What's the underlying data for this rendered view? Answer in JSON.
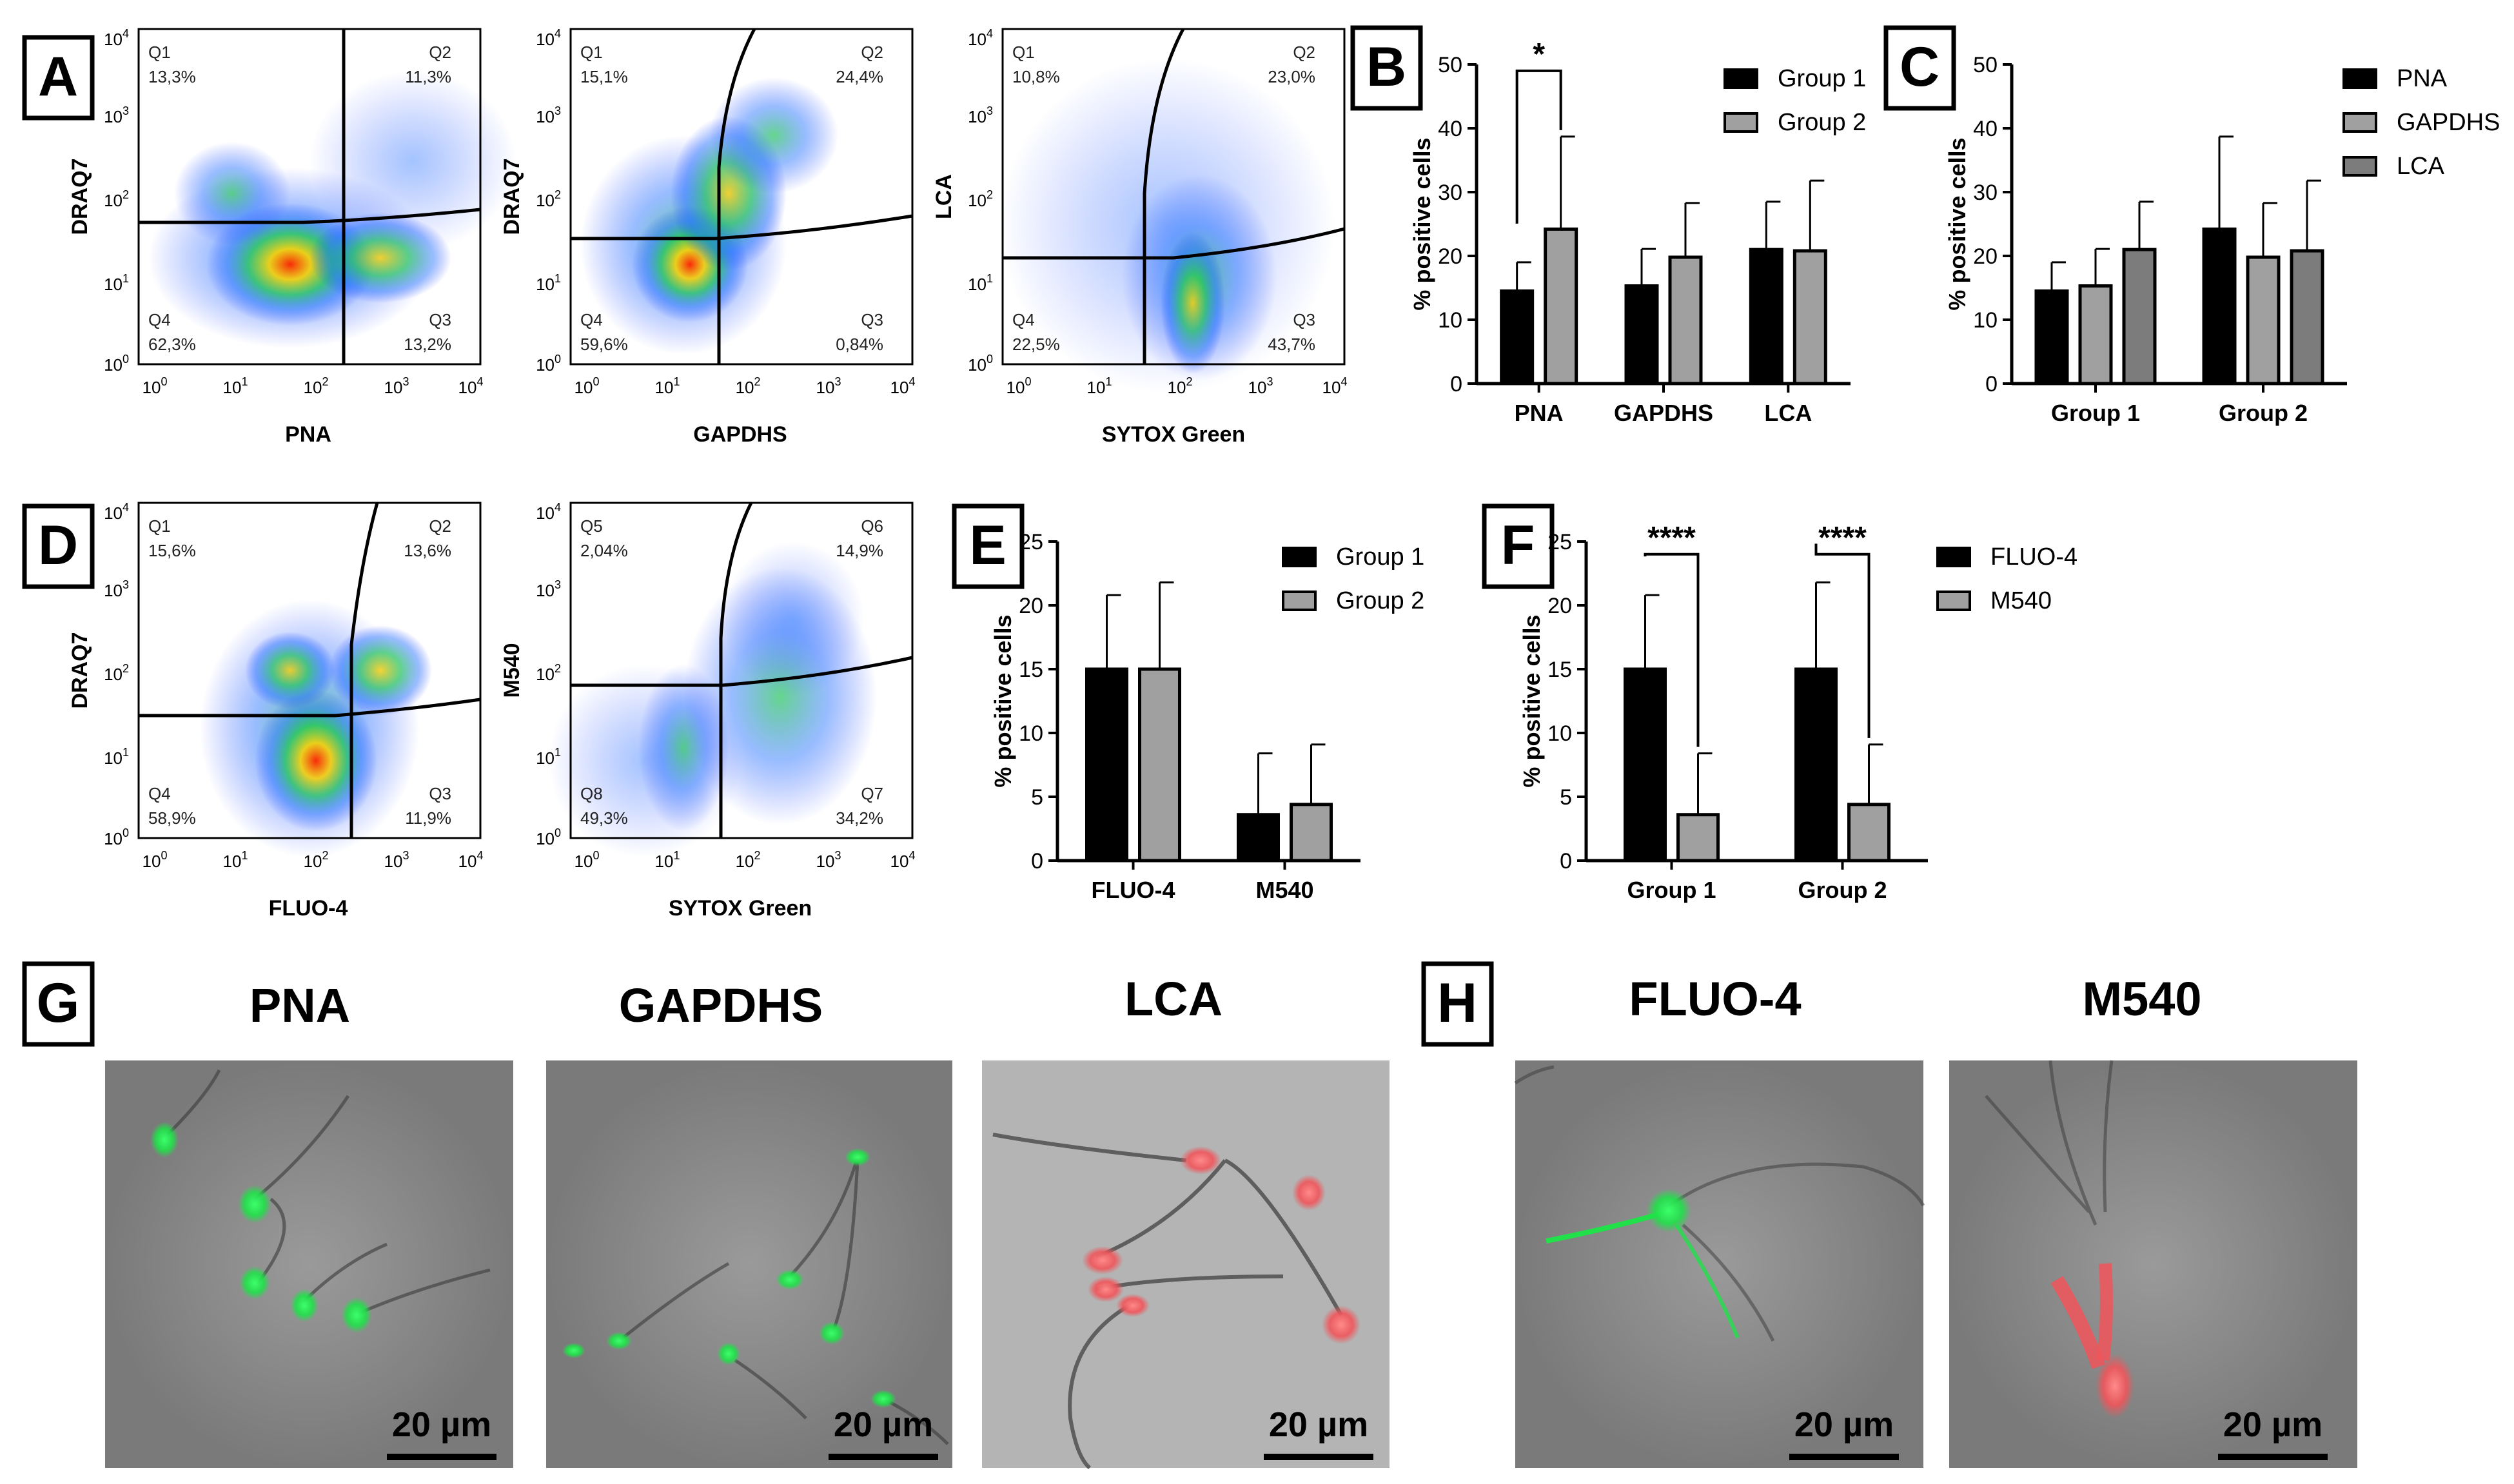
{
  "panel_letters": [
    "A",
    "B",
    "C",
    "D",
    "E",
    "F",
    "G",
    "H"
  ],
  "flow_plots": [
    {
      "xlabel": "PNA",
      "ylabel": "DRAQ7",
      "quadrants": [
        {
          "name": "Q1",
          "pct": "13,3%"
        },
        {
          "name": "Q2",
          "pct": "11,3%"
        },
        {
          "name": "Q4",
          "pct": "62,3%"
        },
        {
          "name": "Q3",
          "pct": "13,2%"
        }
      ]
    },
    {
      "xlabel": "GAPDHS",
      "ylabel": "DRAQ7",
      "quadrants": [
        {
          "name": "Q1",
          "pct": "15,1%"
        },
        {
          "name": "Q2",
          "pct": "24,4%"
        },
        {
          "name": "Q4",
          "pct": "59,6%"
        },
        {
          "name": "Q3",
          "pct": "0,84%"
        }
      ]
    },
    {
      "xlabel": "SYTOX Green",
      "ylabel": "LCA",
      "quadrants": [
        {
          "name": "Q1",
          "pct": "10,8%"
        },
        {
          "name": "Q2",
          "pct": "23,0%"
        },
        {
          "name": "Q4",
          "pct": "22,5%"
        },
        {
          "name": "Q3",
          "pct": "43,7%"
        }
      ]
    },
    {
      "xlabel": "FLUO-4",
      "ylabel": "DRAQ7",
      "quadrants": [
        {
          "name": "Q1",
          "pct": "15,6%"
        },
        {
          "name": "Q2",
          "pct": "13,6%"
        },
        {
          "name": "Q4",
          "pct": "58,9%"
        },
        {
          "name": "Q3",
          "pct": "11,9%"
        }
      ]
    },
    {
      "xlabel": "SYTOX Green",
      "ylabel": "M540",
      "quadrants": [
        {
          "name": "Q5",
          "pct": "2,04%"
        },
        {
          "name": "Q6",
          "pct": "14,9%"
        },
        {
          "name": "Q8",
          "pct": "49,3%"
        },
        {
          "name": "Q7",
          "pct": "34,2%"
        }
      ]
    }
  ],
  "micrographs": [
    {
      "title": "PNA",
      "scalebar": "20 µm",
      "stain": "green"
    },
    {
      "title": "GAPDHS",
      "scalebar": "20 µm",
      "stain": "green"
    },
    {
      "title": "LCA",
      "scalebar": "20 µm",
      "stain": "red"
    },
    {
      "title": "FLUO-4",
      "scalebar": "20 µm",
      "stain": "green"
    },
    {
      "title": "M540",
      "scalebar": "20 µm",
      "stain": "red"
    }
  ],
  "colors": {
    "black_bar": "#000000",
    "light_gray_bar": "#a0a0a0",
    "mid_gray_bar": "#7c7c7c",
    "axis": "#000000",
    "micrograph_bg": "#8c8c8c",
    "green_stain": "#21e04a",
    "red_stain": "#f0555a"
  },
  "chart_data": [
    {
      "panel": "B",
      "type": "bar",
      "ylabel": "% positive cells",
      "ylim": [
        0,
        50
      ],
      "yticks": [
        0,
        10,
        20,
        30,
        40,
        50
      ],
      "categories": [
        "PNA",
        "GAPDHS",
        "LCA"
      ],
      "series": [
        {
          "name": "Group 1",
          "values": [
            14.5,
            15.3,
            21.0
          ],
          "errors": [
            4.5,
            5.8,
            7.5
          ]
        },
        {
          "name": "Group 2",
          "values": [
            24.2,
            19.8,
            20.8
          ],
          "errors": [
            14.5,
            8.5,
            11.0
          ]
        }
      ],
      "annotations": [
        {
          "label": "*",
          "between": "PNA"
        }
      ],
      "legend": "top-right"
    },
    {
      "panel": "C",
      "type": "bar",
      "ylabel": "% positive cells",
      "ylim": [
        0,
        50
      ],
      "yticks": [
        0,
        10,
        20,
        30,
        40,
        50
      ],
      "categories": [
        "Group 1",
        "Group 2"
      ],
      "series": [
        {
          "name": "PNA",
          "values": [
            14.5,
            24.2
          ],
          "errors": [
            4.5,
            14.5
          ]
        },
        {
          "name": "GAPDHS",
          "values": [
            15.3,
            19.8
          ],
          "errors": [
            5.8,
            8.5
          ]
        },
        {
          "name": "LCA",
          "values": [
            21.0,
            20.8
          ],
          "errors": [
            7.5,
            11.0
          ]
        }
      ],
      "legend": "top-right"
    },
    {
      "panel": "E",
      "type": "bar",
      "ylabel": "% positive cells",
      "ylim": [
        0,
        25
      ],
      "yticks": [
        0,
        5,
        10,
        15,
        20,
        25
      ],
      "categories": [
        "FLUO-4",
        "M540"
      ],
      "series": [
        {
          "name": "Group 1",
          "values": [
            15.0,
            3.6
          ],
          "errors": [
            5.8,
            4.8
          ]
        },
        {
          "name": "Group 2",
          "values": [
            15.0,
            4.4
          ],
          "errors": [
            6.8,
            4.7
          ]
        }
      ],
      "legend": "top-right"
    },
    {
      "panel": "F",
      "type": "bar",
      "ylabel": "% positive cells",
      "ylim": [
        0,
        25
      ],
      "yticks": [
        0,
        5,
        10,
        15,
        20,
        25
      ],
      "categories": [
        "Group 1",
        "Group 2"
      ],
      "series": [
        {
          "name": "FLUO-4",
          "values": [
            15.0,
            15.0
          ],
          "errors": [
            5.8,
            6.8
          ]
        },
        {
          "name": "M540",
          "values": [
            3.6,
            4.4
          ],
          "errors": [
            4.8,
            4.7
          ]
        }
      ],
      "annotations": [
        {
          "label": "****",
          "between": "Group 1"
        },
        {
          "label": "****",
          "between": "Group 2"
        }
      ],
      "legend": "top-right"
    }
  ]
}
